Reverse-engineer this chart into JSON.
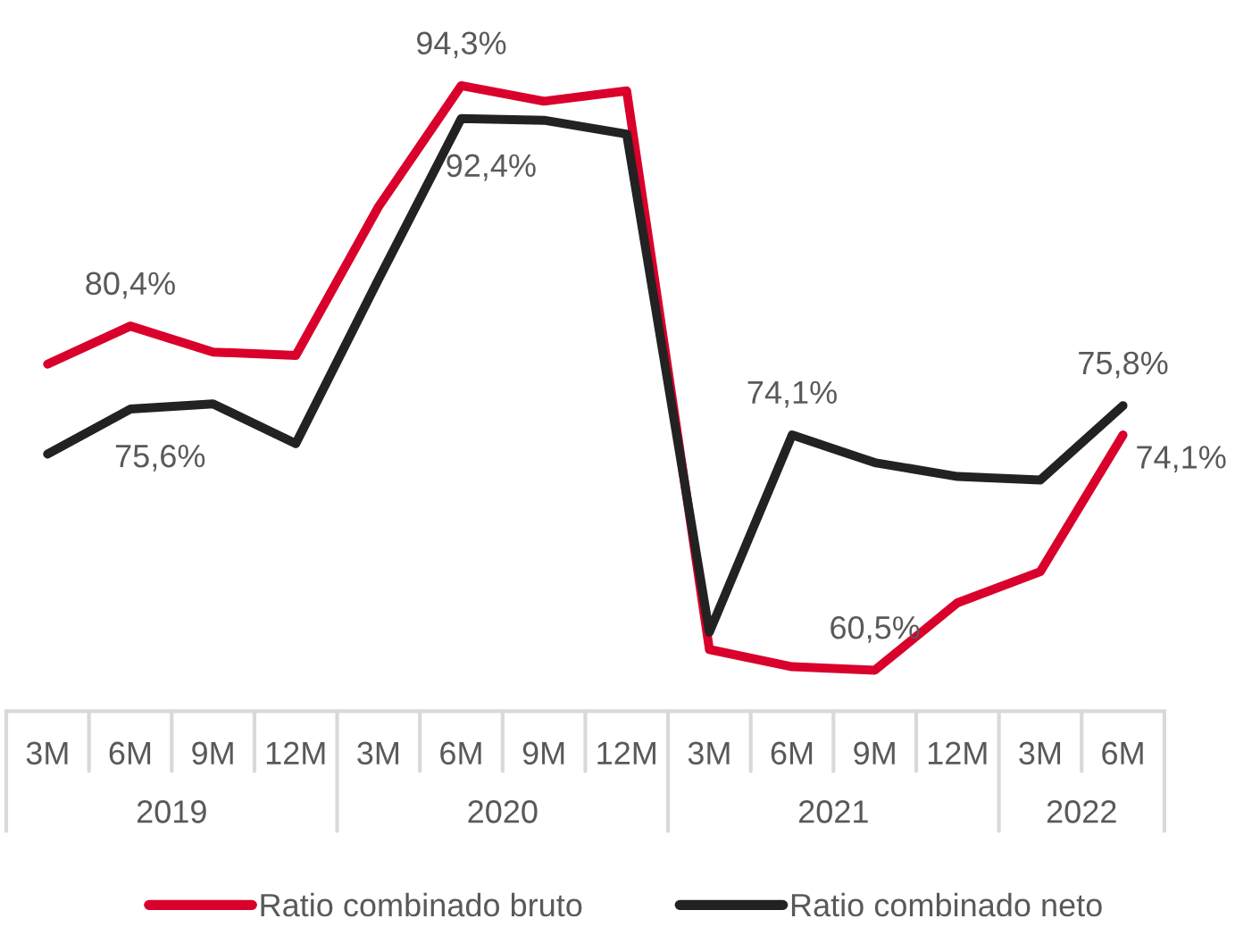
{
  "chart_data": {
    "type": "line",
    "categories": [
      "3M",
      "6M",
      "9M",
      "12M",
      "3M",
      "6M",
      "9M",
      "12M",
      "3M",
      "6M",
      "9M",
      "12M",
      "3M",
      "6M"
    ],
    "series": [
      {
        "name": "Ratio combinado bruto",
        "color": "#d9002b",
        "values": [
          78.2,
          80.4,
          78.9,
          78.7,
          87.3,
          94.3,
          93.4,
          94.0,
          61.7,
          60.7,
          60.5,
          64.4,
          66.2,
          74.1
        ],
        "value_labels": [
          null,
          "80,4%",
          null,
          null,
          null,
          "94,3%",
          null,
          null,
          null,
          null,
          "60,5%",
          null,
          null,
          "74,1%"
        ]
      },
      {
        "name": "Ratio combinado neto",
        "color": "#222222",
        "values": [
          73.0,
          75.6,
          75.9,
          73.6,
          83.1,
          92.4,
          92.3,
          91.5,
          62.7,
          74.1,
          72.5,
          71.7,
          71.5,
          75.8
        ],
        "value_labels": [
          null,
          "75,6%",
          null,
          null,
          null,
          "92,4%",
          null,
          null,
          null,
          "74,1%",
          null,
          null,
          null,
          "75,8%"
        ]
      }
    ],
    "annotations": [
      "2019",
      "2020",
      "2021",
      "2022"
    ],
    "legend": "bottom",
    "grid": false,
    "marker": "none",
    "line_style": "solid"
  }
}
